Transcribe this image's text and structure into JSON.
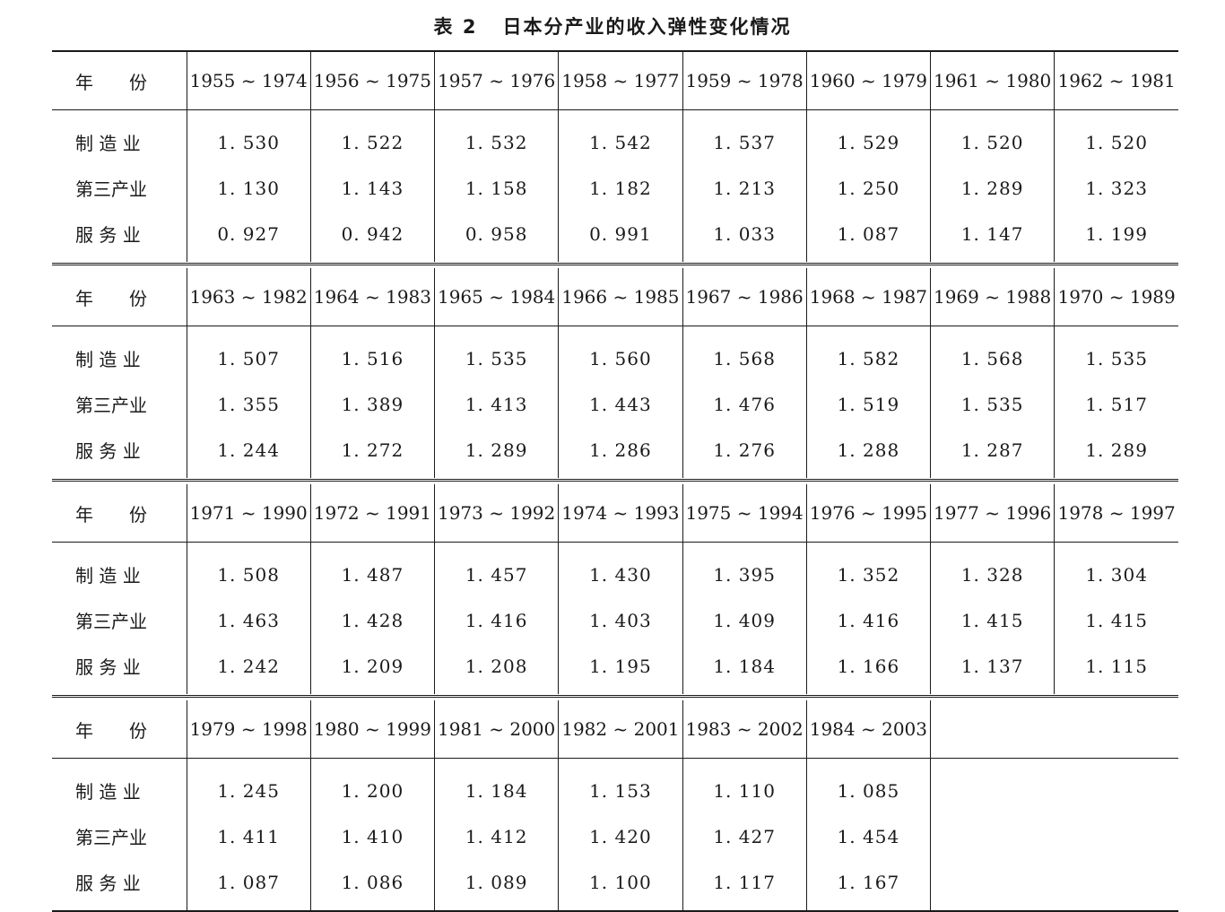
{
  "title": {
    "label": "表 2",
    "text": "日本分产业的收入弹性变化情况"
  },
  "row_header": "年　　份",
  "row_labels": [
    "制 造 业",
    "第三产业",
    "服 务 业"
  ],
  "blocks": [
    {
      "periods": [
        "1955 ~ 1974",
        "1956 ~ 1975",
        "1957 ~ 1976",
        "1958 ~ 1977",
        "1959 ~ 1978",
        "1960 ~ 1979",
        "1961 ~ 1980",
        "1962 ~ 1981"
      ],
      "manufacturing": [
        "1. 530",
        "1. 522",
        "1. 532",
        "1. 542",
        "1. 537",
        "1. 529",
        "1. 520",
        "1. 520"
      ],
      "tertiary": [
        "1. 130",
        "1. 143",
        "1. 158",
        "1. 182",
        "1. 213",
        "1. 250",
        "1. 289",
        "1. 323"
      ],
      "services": [
        "0. 927",
        "0. 942",
        "0. 958",
        "0. 991",
        "1. 033",
        "1. 087",
        "1. 147",
        "1. 199"
      ]
    },
    {
      "periods": [
        "1963 ~ 1982",
        "1964 ~ 1983",
        "1965 ~ 1984",
        "1966 ~ 1985",
        "1967 ~ 1986",
        "1968 ~ 1987",
        "1969 ~ 1988",
        "1970 ~ 1989"
      ],
      "manufacturing": [
        "1. 507",
        "1. 516",
        "1. 535",
        "1. 560",
        "1. 568",
        "1. 582",
        "1. 568",
        "1. 535"
      ],
      "tertiary": [
        "1. 355",
        "1. 389",
        "1. 413",
        "1. 443",
        "1. 476",
        "1. 519",
        "1. 535",
        "1. 517"
      ],
      "services": [
        "1. 244",
        "1. 272",
        "1. 289",
        "1. 286",
        "1. 276",
        "1. 288",
        "1. 287",
        "1. 289"
      ]
    },
    {
      "periods": [
        "1971 ~ 1990",
        "1972 ~ 1991",
        "1973 ~ 1992",
        "1974 ~ 1993",
        "1975 ~ 1994",
        "1976 ~ 1995",
        "1977 ~ 1996",
        "1978 ~ 1997"
      ],
      "manufacturing": [
        "1. 508",
        "1. 487",
        "1. 457",
        "1. 430",
        "1. 395",
        "1. 352",
        "1. 328",
        "1. 304"
      ],
      "tertiary": [
        "1. 463",
        "1. 428",
        "1. 416",
        "1. 403",
        "1. 409",
        "1. 416",
        "1. 415",
        "1. 415"
      ],
      "services": [
        "1. 242",
        "1. 209",
        "1. 208",
        "1. 195",
        "1. 184",
        "1. 166",
        "1. 137",
        "1. 115"
      ]
    },
    {
      "periods": [
        "1979 ~ 1998",
        "1980 ~ 1999",
        "1981 ~ 2000",
        "1982 ~ 2001",
        "1983 ~ 2002",
        "1984 ~ 2003"
      ],
      "manufacturing": [
        "1. 245",
        "1. 200",
        "1. 184",
        "1. 153",
        "1. 110",
        "1. 085"
      ],
      "tertiary": [
        "1. 411",
        "1. 410",
        "1. 412",
        "1. 420",
        "1. 427",
        "1. 454"
      ],
      "services": [
        "1. 087",
        "1. 086",
        "1. 089",
        "1. 100",
        "1. 117",
        "1. 167"
      ]
    }
  ]
}
